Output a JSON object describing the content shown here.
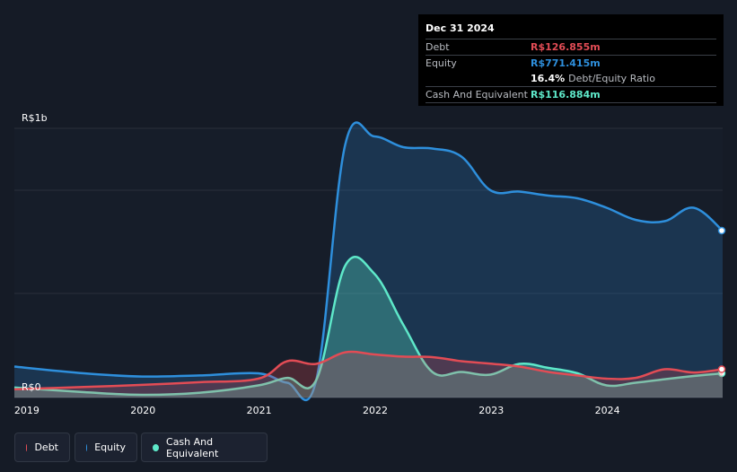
{
  "tooltip": {
    "date": "Dec 31 2024",
    "debt_label": "Debt",
    "debt_value": "R$126.855m",
    "equity_label": "Equity",
    "equity_value": "R$771.415m",
    "ratio_value": "16.4%",
    "ratio_label": "Debt/Equity Ratio",
    "cash_label": "Cash And Equivalent",
    "cash_value": "R$116.884m"
  },
  "legend": {
    "debt": "Debt",
    "equity": "Equity",
    "cash": "Cash And Equivalent"
  },
  "colors": {
    "debt": "#e24c55",
    "equity": "#2e8fdc",
    "cash": "#5ee8c9",
    "background": "#151b26"
  },
  "chart_data": {
    "type": "area",
    "y_top_label": "R$1b",
    "y_bottom_label": "R$0",
    "ylim": [
      0,
      1000
    ],
    "grid": true,
    "x_ticks": [
      "2019",
      "2020",
      "2021",
      "2022",
      "2023",
      "2024"
    ],
    "series": [
      {
        "name": "Debt",
        "x": [
          2018.9,
          2019.5,
          2020.0,
          2020.5,
          2021.0,
          2021.25,
          2021.5,
          2021.75,
          2022.0,
          2022.25,
          2022.5,
          2022.75,
          2023.0,
          2023.25,
          2023.5,
          2023.75,
          2024.0,
          2024.25,
          2024.5,
          2024.75,
          2025.0
        ],
        "values": [
          31,
          39,
          47,
          57,
          70,
          135,
          125,
          168,
          160,
          152,
          150,
          135,
          126,
          115,
          95,
          82,
          70,
          73,
          105,
          93,
          105
        ]
      },
      {
        "name": "Equity",
        "x": [
          2018.9,
          2019.5,
          2020.0,
          2020.5,
          2021.0,
          2021.25,
          2021.5,
          2021.75,
          2022.0,
          2022.25,
          2022.5,
          2022.75,
          2023.0,
          2023.25,
          2023.5,
          2023.75,
          2024.0,
          2024.25,
          2024.5,
          2024.75,
          2025.0
        ],
        "values": [
          115,
          90,
          78,
          82,
          90,
          55,
          65,
          940,
          970,
          930,
          925,
          895,
          770,
          765,
          750,
          740,
          705,
          660,
          655,
          705,
          620
        ]
      },
      {
        "name": "Cash And Equivalent",
        "x": [
          2018.9,
          2019.5,
          2020.0,
          2020.5,
          2021.0,
          2021.25,
          2021.5,
          2021.75,
          2022.0,
          2022.25,
          2022.5,
          2022.75,
          2023.0,
          2023.25,
          2023.5,
          2023.75,
          2024.0,
          2024.25,
          2024.5,
          2024.75,
          2025.0
        ],
        "values": [
          37,
          20,
          10,
          18,
          45,
          73,
          65,
          490,
          460,
          270,
          95,
          95,
          85,
          125,
          110,
          90,
          45,
          55,
          68,
          80,
          90
        ]
      }
    ]
  }
}
